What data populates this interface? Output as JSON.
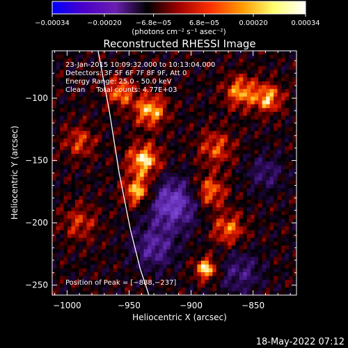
{
  "chart_data": {
    "type": "heatmap",
    "title": "Reconstructed RHESSI Image",
    "xlabel": "Heliocentric X (arcsec)",
    "ylabel": "Heliocentric Y (arcsec)",
    "xlim": [
      -1012,
      -815
    ],
    "ylim": [
      -258,
      -62
    ],
    "x_ticks": [
      -1000,
      -950,
      -900,
      -850
    ],
    "y_ticks": [
      -100,
      -150,
      -200,
      -250
    ],
    "x_tick_labels": [
      "−1000",
      "−950",
      "−900",
      "−850"
    ],
    "y_tick_labels": [
      "−100",
      "−150",
      "−200",
      "−250"
    ],
    "colorbar": {
      "range": [
        -0.00034,
        0.00034
      ],
      "ticks": [
        -0.00034,
        -0.0002,
        -6.8e-05,
        6.8e-05,
        0.0002,
        0.00034
      ],
      "tick_labels": [
        "−0.00034",
        "−0.00020",
        "−6.8e−05",
        "6.8e−05",
        "0.00020",
        "0.00034"
      ],
      "unit_label": "(photons cm⁻² s⁻¹ asec⁻²)",
      "colors": [
        "#0000ff",
        "#4b00c8",
        "#6a1fb0",
        "#000000",
        "#a00000",
        "#ff3000",
        "#ff9a00",
        "#ffff70",
        "#ffffff"
      ]
    },
    "annotations": [
      "23-Jan-2015 10:09:32.000 to 10:13:04.000",
      "Detectors: 3F 5F 6F 7F 8F 9F, Att 0",
      "Energy Range: 25.0 - 50.0 keV",
      "Clean     Total counts: 4.77E+03"
    ],
    "peak_label": "Position of Peak = [−888,−237]",
    "peak": [
      -888,
      -237
    ],
    "limb_curve": [
      [
        -975,
        -62
      ],
      [
        -966,
        -110
      ],
      [
        -958,
        -160
      ],
      [
        -949,
        -205
      ],
      [
        -941,
        -237
      ],
      [
        -934,
        -258
      ]
    ],
    "features": [
      {
        "x": -933,
        "y": -110,
        "amp": 0.85,
        "sigma": 9
      },
      {
        "x": -938,
        "y": -150,
        "amp": 0.95,
        "sigma": 9
      },
      {
        "x": -943,
        "y": -175,
        "amp": 0.9,
        "sigma": 8
      },
      {
        "x": -957,
        "y": -95,
        "amp": 0.7,
        "sigma": 8
      },
      {
        "x": -860,
        "y": -95,
        "amp": 0.75,
        "sigma": 9
      },
      {
        "x": -838,
        "y": -100,
        "amp": 0.8,
        "sigma": 8
      },
      {
        "x": -880,
        "y": -140,
        "amp": 0.55,
        "sigma": 10
      },
      {
        "x": -885,
        "y": -175,
        "amp": 0.7,
        "sigma": 9
      },
      {
        "x": -870,
        "y": -205,
        "amp": 0.65,
        "sigma": 9
      },
      {
        "x": -888,
        "y": -237,
        "amp": 1.0,
        "sigma": 6
      },
      {
        "x": -990,
        "y": -200,
        "amp": 0.45,
        "sigma": 10
      },
      {
        "x": -990,
        "y": -135,
        "amp": 0.5,
        "sigma": 9
      },
      {
        "x": -915,
        "y": -185,
        "amp": -0.9,
        "sigma": 14
      },
      {
        "x": -930,
        "y": -220,
        "amp": -0.6,
        "sigma": 12
      },
      {
        "x": -860,
        "y": -240,
        "amp": -0.45,
        "sigma": 12
      },
      {
        "x": -840,
        "y": -160,
        "amp": -0.4,
        "sigma": 10
      }
    ]
  },
  "footer": {
    "timestamp": "18-May-2022 07:12"
  }
}
